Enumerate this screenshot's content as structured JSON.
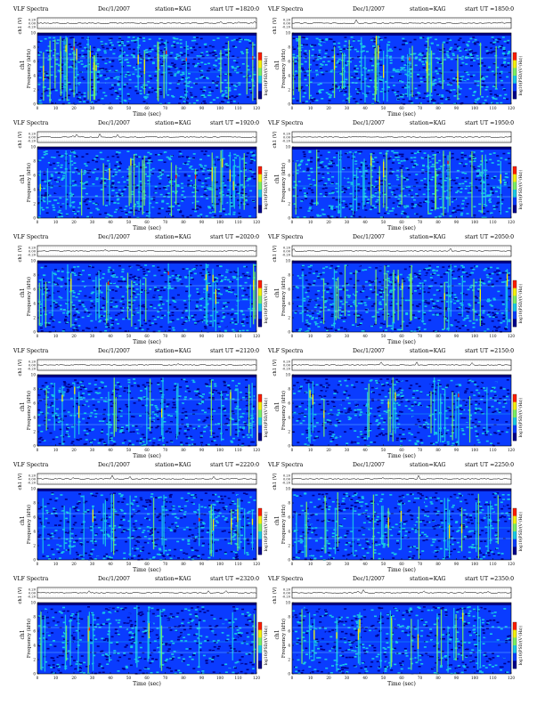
{
  "header_common": {
    "title": "VLF Spectra",
    "date": "Dec/1/2007",
    "station": "station=KAG",
    "ut_label": "start  UT  ="
  },
  "labels": {
    "ch1_axis": "ch1 (V)",
    "freq_axis": "Frequency (kHz)",
    "ch_tag": "ch1",
    "xlabel": "Time (sec)",
    "colorbar": "log10(PSD/(V²/Hz))"
  },
  "colors": {
    "dark_blue": "#00008a",
    "blue": "#0a3cff",
    "cyan": "#19c8e6",
    "green": "#78f064",
    "yellow": "#f5f00a",
    "red": "#ff1e00"
  },
  "chart_data": [
    {
      "type": "heatmap",
      "start_ut": "1820:0",
      "x": {
        "min": 0,
        "max": 120,
        "ticks": [
          0,
          10,
          20,
          30,
          40,
          50,
          60,
          70,
          80,
          90,
          100,
          110,
          120
        ]
      },
      "y": {
        "min": 0,
        "max": 10,
        "ticks": [
          0,
          2,
          4,
          6,
          8,
          10
        ]
      },
      "ch1_ticks": [
        "-0.20",
        "0.00",
        "0.20"
      ],
      "intensity_level": 0.62
    },
    {
      "type": "heatmap",
      "start_ut": "1850:0",
      "x": {
        "min": 0,
        "max": 120,
        "ticks": [
          0,
          10,
          20,
          30,
          40,
          50,
          60,
          70,
          80,
          90,
          100,
          110,
          120
        ]
      },
      "y": {
        "min": 0,
        "max": 10,
        "ticks": [
          0,
          2,
          4,
          6,
          8,
          10
        ]
      },
      "ch1_ticks": [
        "-0.20",
        "0.00",
        "0.20"
      ],
      "intensity_level": 0.62
    },
    {
      "type": "heatmap",
      "start_ut": "1920:0",
      "x": {
        "min": 0,
        "max": 120,
        "ticks": [
          0,
          10,
          20,
          30,
          40,
          50,
          60,
          70,
          80,
          90,
          100,
          110,
          120
        ]
      },
      "y": {
        "min": 0,
        "max": 10,
        "ticks": [
          0,
          2,
          4,
          6,
          8,
          10
        ]
      },
      "ch1_ticks": [
        "-0.20",
        "0.00",
        "0.20"
      ],
      "intensity_level": 0.56
    },
    {
      "type": "heatmap",
      "start_ut": "1950:0",
      "x": {
        "min": 0,
        "max": 120,
        "ticks": [
          0,
          10,
          20,
          30,
          40,
          50,
          60,
          70,
          80,
          90,
          100,
          110,
          120
        ]
      },
      "y": {
        "min": 0,
        "max": 10,
        "ticks": [
          0,
          2,
          4,
          6,
          8,
          10
        ]
      },
      "ch1_ticks": [
        "-0.20",
        "0.00",
        "0.20"
      ],
      "intensity_level": 0.56
    },
    {
      "type": "heatmap",
      "start_ut": "2020:0",
      "x": {
        "min": 0,
        "max": 120,
        "ticks": [
          0,
          10,
          20,
          30,
          40,
          50,
          60,
          70,
          80,
          90,
          100,
          110,
          120
        ]
      },
      "y": {
        "min": 0,
        "max": 10,
        "ticks": [
          0,
          2,
          4,
          6,
          8,
          10
        ]
      },
      "ch1_ticks": [
        "-0.20",
        "0.00",
        "0.20"
      ],
      "intensity_level": 0.5
    },
    {
      "type": "heatmap",
      "start_ut": "2050:0",
      "x": {
        "min": 0,
        "max": 120,
        "ticks": [
          0,
          10,
          20,
          30,
          40,
          50,
          60,
          70,
          80,
          90,
          100,
          110,
          120
        ]
      },
      "y": {
        "min": 0,
        "max": 10,
        "ticks": [
          0,
          2,
          4,
          6,
          8,
          10
        ]
      },
      "ch1_ticks": [
        "-0.20",
        "0.00",
        "0.20"
      ],
      "intensity_level": 0.5
    },
    {
      "type": "heatmap",
      "start_ut": "2120:0",
      "x": {
        "min": 0,
        "max": 120,
        "ticks": [
          0,
          10,
          20,
          30,
          40,
          50,
          60,
          70,
          80,
          90,
          100,
          110,
          120
        ]
      },
      "y": {
        "min": 0,
        "max": 10,
        "ticks": [
          0,
          2,
          4,
          6,
          8,
          10
        ]
      },
      "ch1_ticks": [
        "-0.20",
        "0.00",
        "0.20"
      ],
      "intensity_level": 0.4
    },
    {
      "type": "heatmap",
      "start_ut": "2150:0",
      "x": {
        "min": 0,
        "max": 120,
        "ticks": [
          0,
          10,
          20,
          30,
          40,
          50,
          60,
          70,
          80,
          90,
          100,
          110,
          120
        ]
      },
      "y": {
        "min": 0,
        "max": 10,
        "ticks": [
          0,
          2,
          4,
          6,
          8,
          10
        ]
      },
      "ch1_ticks": [
        "-0.20",
        "0.00",
        "0.20"
      ],
      "intensity_level": 0.4
    },
    {
      "type": "heatmap",
      "start_ut": "2220:0",
      "x": {
        "min": 0,
        "max": 120,
        "ticks": [
          0,
          10,
          20,
          30,
          40,
          50,
          60,
          70,
          80,
          90,
          100,
          110,
          120
        ]
      },
      "y": {
        "min": 0,
        "max": 10,
        "ticks": [
          0,
          2,
          4,
          6,
          8,
          10
        ]
      },
      "ch1_ticks": [
        "-0.20",
        "0.00",
        "0.20"
      ],
      "intensity_level": 0.4
    },
    {
      "type": "heatmap",
      "start_ut": "2250:0",
      "x": {
        "min": 0,
        "max": 120,
        "ticks": [
          0,
          10,
          20,
          30,
          40,
          50,
          60,
          70,
          80,
          90,
          100,
          110,
          120
        ]
      },
      "y": {
        "min": 0,
        "max": 10,
        "ticks": [
          0,
          2,
          4,
          6,
          8,
          10
        ]
      },
      "ch1_ticks": [
        "-0.20",
        "0.00",
        "0.20"
      ],
      "intensity_level": 0.42
    },
    {
      "type": "heatmap",
      "start_ut": "2320:0",
      "x": {
        "min": 0,
        "max": 120,
        "ticks": [
          0,
          10,
          20,
          30,
          40,
          50,
          60,
          70,
          80,
          90,
          100,
          110,
          120
        ]
      },
      "y": {
        "min": 0,
        "max": 10,
        "ticks": [
          0,
          2,
          4,
          6,
          8,
          10
        ]
      },
      "ch1_ticks": [
        "-0.20",
        "0.00",
        "0.20"
      ],
      "intensity_level": 0.38
    },
    {
      "type": "heatmap",
      "start_ut": "2350:0",
      "x": {
        "min": 0,
        "max": 120,
        "ticks": [
          0,
          10,
          20,
          30,
          40,
          50,
          60,
          70,
          80,
          90,
          100,
          110,
          120
        ]
      },
      "y": {
        "min": 0,
        "max": 10,
        "ticks": [
          0,
          2,
          4,
          6,
          8,
          10
        ]
      },
      "ch1_ticks": [
        "-0.20",
        "0.00",
        "0.20"
      ],
      "intensity_level": 0.4
    }
  ]
}
